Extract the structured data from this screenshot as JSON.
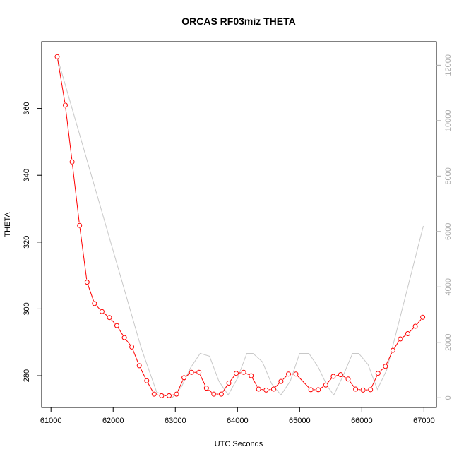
{
  "chart_data": {
    "type": "line",
    "title": "ORCAS RF03miz THETA",
    "xlabel": "UTC Seconds",
    "ylabel": "THETA",
    "xlim": [
      60850,
      67200
    ],
    "ylim": [
      270.5,
      380
    ],
    "y2lim": [
      -350,
      12850
    ],
    "xticks": [
      61000,
      62000,
      63000,
      64000,
      65000,
      66000,
      67000
    ],
    "yticks": [
      280,
      300,
      320,
      340,
      360
    ],
    "y2ticks": [
      0,
      2000,
      4000,
      6000,
      8000,
      10000,
      12000
    ],
    "grid": false,
    "colors": {
      "theta": "#ff0000",
      "secondary": "#c8c8c8",
      "right_axis": "#a9a9a9"
    },
    "series": [
      {
        "axis": "left",
        "marker": "circle",
        "x": [
          61100,
          61230,
          61340,
          61460,
          61580,
          61700,
          61820,
          61940,
          62060,
          62180,
          62300,
          62420,
          62540,
          62660,
          62780,
          62900,
          63020,
          63140,
          63260,
          63380,
          63500,
          63620,
          63740,
          63860,
          63980,
          64100,
          64220,
          64340,
          64460,
          64580,
          64700,
          64820,
          64940,
          65180,
          65300,
          65420,
          65540,
          65660,
          65780,
          65900,
          66020,
          66140,
          66260,
          66380,
          66500,
          66620,
          66740,
          66860,
          66980
        ],
        "values": [
          375.5,
          361,
          344,
          325,
          308,
          301.6,
          299.2,
          297.4,
          295,
          291.4,
          288.6,
          283,
          278.5,
          274.5,
          274,
          274,
          274.5,
          279.4,
          281,
          281,
          276.3,
          274.5,
          274.5,
          277.8,
          280.7,
          281,
          280,
          276,
          275.7,
          276,
          278.3,
          280.5,
          280.5,
          275.8,
          275.8,
          277.2,
          279.8,
          280.3,
          279,
          276,
          275.7,
          275.8,
          280.7,
          282.8,
          287.6,
          291,
          292.6,
          294.8,
          297.5
        ]
      },
      {
        "axis": "right",
        "x": [
          61100,
          62450,
          62700,
          62950,
          63100,
          63250,
          63400,
          63550,
          63700,
          63850,
          64000,
          64150,
          64250,
          64400,
          64550,
          64700,
          64850,
          65000,
          65150,
          65300,
          65450,
          65550,
          65700,
          65850,
          65950,
          66100,
          66250,
          66400,
          66990
        ],
        "values": [
          12300,
          1800,
          200,
          0,
          400,
          1100,
          1600,
          1500,
          600,
          100,
          700,
          1600,
          1600,
          1300,
          500,
          100,
          600,
          1600,
          1600,
          1100,
          400,
          100,
          800,
          1600,
          1600,
          1200,
          300,
          1000,
          6200
        ]
      }
    ]
  }
}
